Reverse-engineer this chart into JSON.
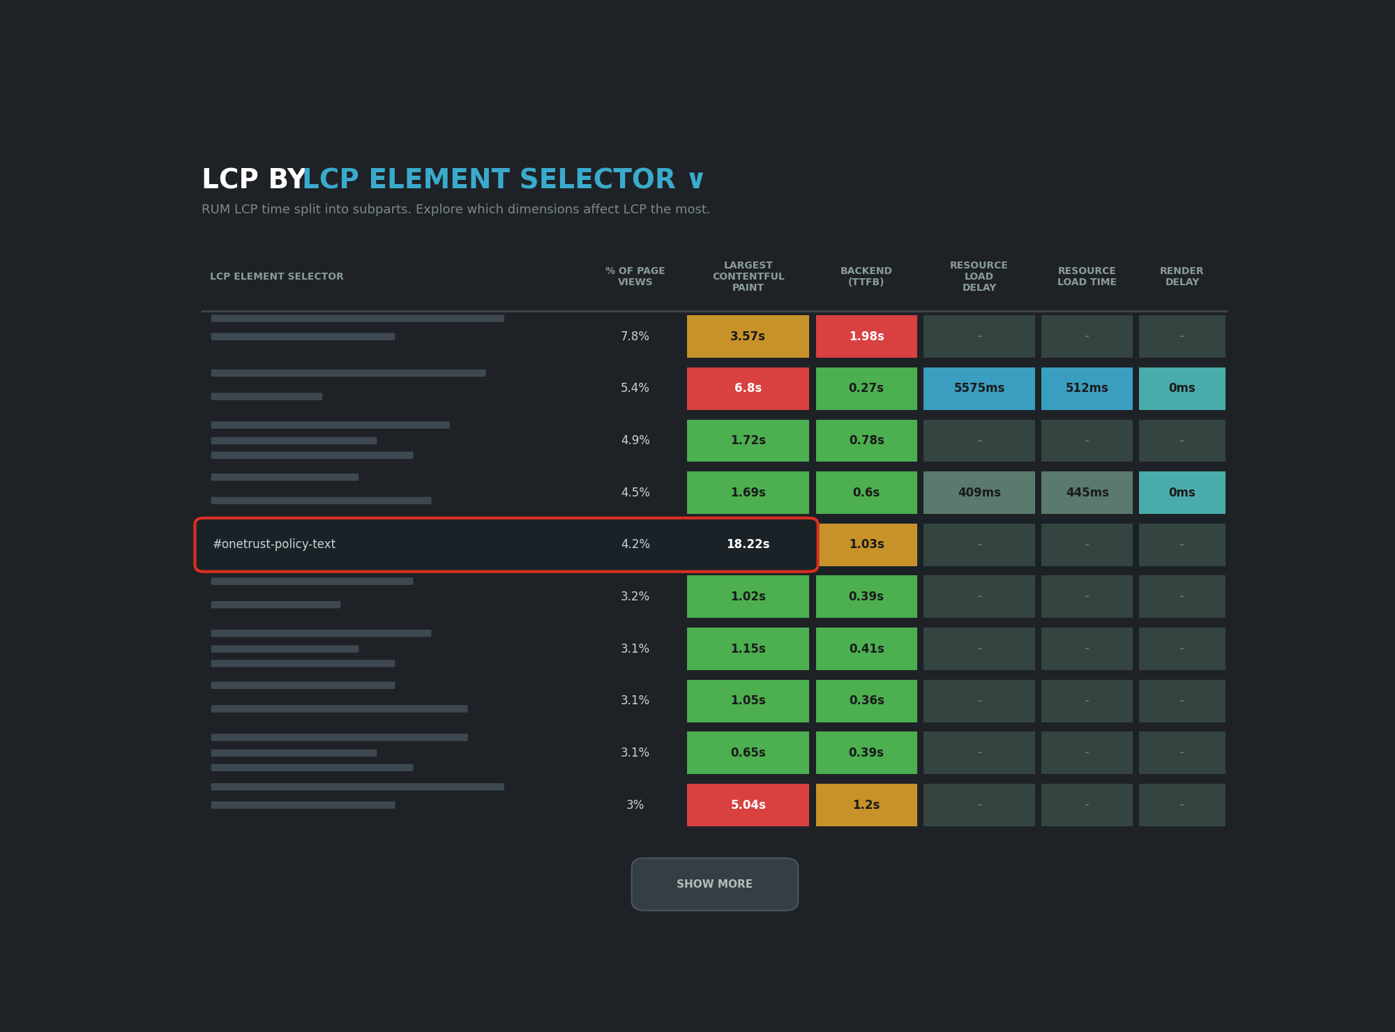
{
  "title_white": "LCP BY ",
  "title_cyan": "LCP ELEMENT SELECTOR ∨  ",
  "subtitle": "RUM LCP time split into subparts. Explore which dimensions affect LCP the most.",
  "col_headers": [
    "LCP ELEMENT SELECTOR",
    "% OF PAGE\nVIEWS",
    "LARGEST\nCONTENTFUL\nPAINT",
    "BACKEND\n(TTFB)",
    "RESOURCE\nLOAD\nDELAY",
    "RESOURCE\nLOAD TIME",
    "RENDER\nDELAY"
  ],
  "rows": [
    {
      "selector": null,
      "pct": "7.8%",
      "lcp": "3.57s",
      "backend": "1.98s",
      "rld": "-",
      "rlt": "-",
      "render": "-",
      "lcp_color": "#C8922A",
      "backend_color": "#D94040",
      "rld_color": "#5A7A6E",
      "rlt_color": "#5A7A6E",
      "render_color": "#5A7A6E",
      "highlight": false
    },
    {
      "selector": null,
      "pct": "5.4%",
      "lcp": "6.8s",
      "backend": "0.27s",
      "rld": "5575ms",
      "rlt": "512ms",
      "render": "0ms",
      "lcp_color": "#D94040",
      "backend_color": "#4CAF50",
      "rld_color": "#3A9EC0",
      "rlt_color": "#3A9EC0",
      "render_color": "#4AACAA",
      "highlight": false
    },
    {
      "selector": null,
      "pct": "4.9%",
      "lcp": "1.72s",
      "backend": "0.78s",
      "rld": "-",
      "rlt": "-",
      "render": "-",
      "lcp_color": "#4CAF50",
      "backend_color": "#4CAF50",
      "rld_color": "#5A7A6E",
      "rlt_color": "#5A7A6E",
      "render_color": "#5A7A6E",
      "highlight": false
    },
    {
      "selector": null,
      "pct": "4.5%",
      "lcp": "1.69s",
      "backend": "0.6s",
      "rld": "409ms",
      "rlt": "445ms",
      "render": "0ms",
      "lcp_color": "#4CAF50",
      "backend_color": "#4CAF50",
      "rld_color": "#5A7A6E",
      "rlt_color": "#5A7A6E",
      "render_color": "#4AACAA",
      "highlight": false
    },
    {
      "selector": "#onetrust-policy-text",
      "pct": "4.2%",
      "lcp": "18.22s",
      "backend": "1.03s",
      "rld": "-",
      "rlt": "-",
      "render": "-",
      "lcp_color": "#D94040",
      "backend_color": "#C8922A",
      "rld_color": "#5A7A6E",
      "rlt_color": "#5A7A6E",
      "render_color": "#5A7A6E",
      "highlight": true
    },
    {
      "selector": null,
      "pct": "3.2%",
      "lcp": "1.02s",
      "backend": "0.39s",
      "rld": "-",
      "rlt": "-",
      "render": "-",
      "lcp_color": "#4CAF50",
      "backend_color": "#4CAF50",
      "rld_color": "#5A7A6E",
      "rlt_color": "#5A7A6E",
      "render_color": "#5A7A6E",
      "highlight": false
    },
    {
      "selector": null,
      "pct": "3.1%",
      "lcp": "1.15s",
      "backend": "0.41s",
      "rld": "-",
      "rlt": "-",
      "render": "-",
      "lcp_color": "#4CAF50",
      "backend_color": "#4CAF50",
      "rld_color": "#5A7A6E",
      "rlt_color": "#5A7A6E",
      "render_color": "#5A7A6E",
      "highlight": false
    },
    {
      "selector": null,
      "pct": "3.1%",
      "lcp": "1.05s",
      "backend": "0.36s",
      "rld": "-",
      "rlt": "-",
      "render": "-",
      "lcp_color": "#4CAF50",
      "backend_color": "#4CAF50",
      "rld_color": "#5A7A6E",
      "rlt_color": "#5A7A6E",
      "render_color": "#5A7A6E",
      "highlight": false
    },
    {
      "selector": null,
      "pct": "3.1%",
      "lcp": "0.65s",
      "backend": "0.39s",
      "rld": "-",
      "rlt": "-",
      "render": "-",
      "lcp_color": "#4CAF50",
      "backend_color": "#4CAF50",
      "rld_color": "#5A7A6E",
      "rlt_color": "#5A7A6E",
      "render_color": "#5A7A6E",
      "highlight": false
    },
    {
      "selector": null,
      "pct": "3%",
      "lcp": "5.04s",
      "backend": "1.2s",
      "rld": "-",
      "rlt": "-",
      "render": "-",
      "lcp_color": "#D94040",
      "backend_color": "#C8922A",
      "rld_color": "#5A7A6E",
      "rlt_color": "#5A7A6E",
      "render_color": "#5A7A6E",
      "highlight": false
    }
  ],
  "bg_color": "#1E2226",
  "dash_cell_bg": "#344440",
  "header_text_color": "#8A9B98",
  "row_text_color": "#C8D5D2",
  "title_color_white": "#FFFFFF",
  "title_color_cyan": "#3AABCC",
  "subtitle_color": "#7A8B88",
  "show_more_bg": "#343E44",
  "show_more_text": "#B0BDB8",
  "highlight_border_color": "#D93020",
  "highlight_row_bg": "#1A2228",
  "blurred_bar_colors": [
    "#4A5660",
    "#3E4A54",
    "#556070"
  ],
  "blurred_line_configs": [
    [
      [
        0.8,
        0.5
      ],
      [
        0.35,
        0.0
      ]
    ],
    [
      [
        0.75,
        0.3
      ],
      [
        0.3,
        -0.15
      ]
    ],
    [
      [
        0.65,
        0.45,
        0.55
      ],
      [
        0.3,
        0.0,
        -0.28
      ]
    ],
    [
      [
        0.4,
        0.6
      ],
      [
        0.3,
        -0.15
      ]
    ],
    [
      [
        0.8,
        0.5
      ],
      [
        0.35,
        0.0
      ]
    ],
    [
      [
        0.55,
        0.35
      ],
      [
        0.3,
        -0.15
      ]
    ],
    [
      [
        0.6,
        0.4,
        0.5
      ],
      [
        0.3,
        0.0,
        -0.28
      ]
    ],
    [
      [
        0.5,
        0.7
      ],
      [
        0.3,
        -0.15
      ]
    ],
    [
      [
        0.7,
        0.45,
        0.55
      ],
      [
        0.3,
        0.0,
        -0.28
      ]
    ],
    [
      [
        0.8,
        0.5
      ],
      [
        0.35,
        0.0
      ]
    ]
  ]
}
